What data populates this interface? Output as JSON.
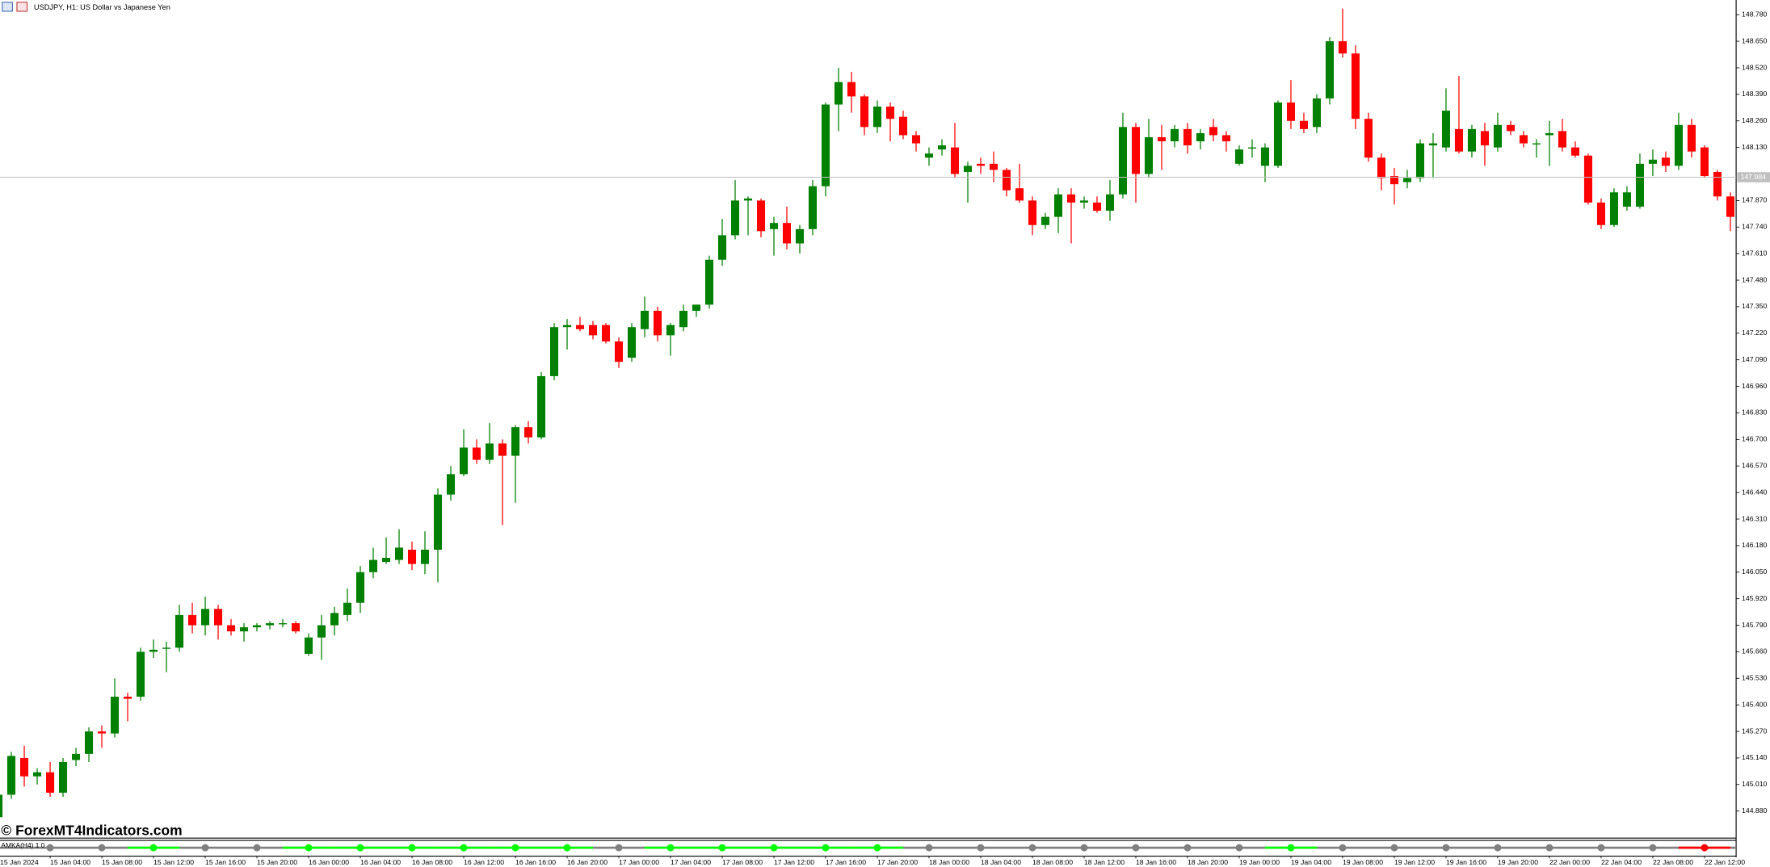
{
  "chart_data": {
    "type": "candlestick",
    "title": "USDJPY, H1:  US Dollar vs Japanese Yen",
    "watermark": "© ForexMT4Indicators.com",
    "categories": [
      "15 Jan 2024",
      null,
      null,
      null,
      "15 Jan 04:00",
      null,
      null,
      null,
      "15 Jan 08:00",
      null,
      null,
      null,
      "15 Jan 12:00",
      null,
      null,
      null,
      "15 Jan 16:00",
      null,
      null,
      null,
      "15 Jan 20:00",
      null,
      null,
      null,
      "16 Jan 00:00",
      null,
      null,
      null,
      "16 Jan 04:00",
      null,
      null,
      null,
      "16 Jan 08:00",
      null,
      null,
      null,
      "16 Jan 12:00",
      null,
      null,
      null,
      "16 Jan 16:00",
      null,
      null,
      null,
      "16 Jan 20:00",
      null,
      null,
      null,
      "17 Jan 00:00",
      null,
      null,
      null,
      "17 Jan 04:00",
      null,
      null,
      null,
      "17 Jan 08:00",
      null,
      null,
      null,
      "17 Jan 12:00",
      null,
      null,
      null,
      "17 Jan 16:00",
      null,
      null,
      null,
      "17 Jan 20:00",
      null,
      null,
      null,
      "18 Jan 00:00",
      null,
      null,
      null,
      "18 Jan 04:00",
      null,
      null,
      null,
      "18 Jan 08:00",
      null,
      null,
      null,
      "18 Jan 12:00",
      null,
      null,
      null,
      "18 Jan 16:00",
      null,
      null,
      null,
      "18 Jan 20:00",
      null,
      null,
      null,
      "19 Jan 00:00",
      null,
      null,
      null,
      "19 Jan 04:00",
      null,
      null,
      null,
      "19 Jan 08:00",
      null,
      null,
      null,
      "19 Jan 12:00",
      null,
      null,
      null,
      "19 Jan 16:00",
      null,
      null,
      null,
      "19 Jan 20:00",
      null,
      null,
      null,
      "22 Jan 00:00",
      null,
      null,
      null,
      "22 Jan 04:00",
      null,
      null,
      null,
      "22 Jan 08:00",
      null,
      null,
      null,
      "22 Jan 12:00",
      null,
      null
    ],
    "open": [
      144.85,
      144.96,
      145.14,
      145.05,
      145.07,
      144.97,
      145.13,
      145.16,
      145.27,
      145.26,
      145.44,
      145.44,
      145.66,
      145.68,
      145.68,
      145.84,
      145.79,
      145.87,
      145.79,
      145.76,
      145.78,
      145.79,
      145.8,
      145.8,
      145.65,
      145.73,
      145.79,
      145.84,
      145.9,
      146.05,
      146.1,
      146.11,
      146.16,
      146.09,
      146.16,
      146.43,
      146.53,
      146.66,
      146.6,
      146.68,
      146.62,
      146.76,
      146.71,
      147.01,
      147.25,
      147.26,
      147.26,
      147.26,
      147.18,
      147.1,
      147.24,
      147.33,
      147.21,
      147.25,
      147.33,
      147.36,
      147.58,
      147.7,
      147.87,
      147.87,
      147.73,
      147.76,
      147.66,
      147.73,
      147.94,
      148.34,
      148.45,
      148.38,
      148.23,
      148.33,
      148.28,
      148.19,
      148.08,
      148.12,
      148.13,
      148.01,
      148.05,
      148.05,
      148.02,
      147.93,
      147.87,
      147.75,
      147.79,
      147.9,
      147.86,
      147.86,
      147.82,
      147.9,
      148.23,
      148.0,
      148.18,
      148.16,
      148.22,
      148.16,
      148.23,
      148.19,
      148.05,
      148.13,
      148.04,
      148.04,
      148.35,
      148.26,
      148.23,
      148.37,
      148.65,
      148.59,
      148.27,
      148.08,
      147.99,
      147.96,
      147.98,
      148.14,
      148.13,
      148.22,
      148.11,
      148.21,
      148.13,
      148.24,
      148.19,
      148.15,
      148.19,
      148.21,
      148.13,
      148.09,
      147.86,
      147.75,
      147.84,
      147.84,
      148.05,
      148.08,
      148.04,
      148.24,
      148.13,
      148.01,
      147.89
    ],
    "high": [
      144.98,
      145.17,
      145.2,
      145.09,
      145.12,
      145.14,
      145.19,
      145.29,
      145.3,
      145.53,
      145.46,
      145.68,
      145.72,
      145.71,
      145.89,
      145.9,
      145.93,
      145.89,
      145.82,
      145.8,
      145.8,
      145.81,
      145.82,
      145.81,
      145.75,
      145.84,
      145.88,
      145.97,
      146.08,
      146.17,
      146.22,
      146.26,
      146.2,
      146.25,
      146.46,
      146.57,
      146.75,
      146.7,
      146.78,
      146.7,
      146.77,
      146.79,
      147.03,
      147.27,
      147.29,
      147.3,
      147.28,
      147.27,
      147.2,
      147.27,
      147.4,
      147.35,
      147.27,
      147.36,
      147.36,
      147.6,
      147.78,
      147.97,
      147.89,
      147.88,
      147.79,
      147.84,
      147.75,
      147.97,
      148.35,
      148.52,
      148.5,
      148.39,
      148.36,
      148.35,
      148.31,
      148.21,
      148.13,
      148.17,
      148.25,
      148.06,
      148.08,
      148.11,
      148.03,
      148.05,
      147.89,
      147.81,
      147.93,
      147.93,
      147.89,
      147.89,
      147.97,
      148.3,
      148.25,
      148.27,
      148.24,
      148.24,
      148.25,
      148.22,
      148.27,
      148.21,
      148.14,
      148.17,
      148.15,
      148.36,
      148.46,
      148.3,
      148.39,
      148.67,
      148.81,
      148.63,
      148.3,
      148.1,
      148.03,
      148.02,
      148.17,
      148.2,
      148.42,
      148.48,
      148.24,
      148.25,
      148.3,
      148.26,
      148.21,
      148.17,
      148.26,
      148.27,
      148.16,
      148.1,
      147.88,
      147.93,
      147.94,
      148.1,
      148.12,
      148.11,
      148.3,
      148.27,
      148.14,
      148.02,
      147.91
    ],
    "low": [
      144.82,
      144.94,
      145.0,
      145.01,
      144.95,
      144.95,
      145.1,
      145.12,
      145.19,
      145.24,
      145.32,
      145.42,
      145.63,
      145.56,
      145.66,
      145.75,
      145.74,
      145.72,
      145.74,
      145.71,
      145.76,
      145.77,
      145.78,
      145.75,
      145.64,
      145.62,
      145.74,
      145.81,
      145.85,
      146.02,
      146.09,
      146.09,
      146.06,
      146.04,
      146.0,
      146.4,
      146.52,
      146.58,
      146.58,
      146.28,
      146.39,
      146.68,
      146.7,
      146.99,
      147.14,
      147.23,
      147.19,
      147.17,
      147.05,
      147.08,
      147.2,
      147.18,
      147.11,
      147.23,
      147.3,
      147.34,
      147.55,
      147.68,
      147.7,
      147.69,
      147.6,
      147.63,
      147.61,
      147.7,
      147.89,
      148.21,
      148.3,
      148.19,
      148.2,
      148.16,
      148.17,
      148.11,
      148.04,
      148.09,
      147.98,
      147.86,
      148.0,
      147.96,
      147.89,
      147.86,
      147.7,
      147.73,
      147.71,
      147.66,
      147.83,
      147.81,
      147.77,
      147.88,
      147.86,
      147.98,
      148.02,
      148.13,
      148.1,
      148.12,
      148.16,
      148.11,
      148.04,
      148.08,
      147.96,
      148.03,
      148.22,
      148.2,
      148.2,
      148.34,
      148.57,
      148.22,
      148.06,
      147.92,
      147.85,
      147.93,
      147.96,
      147.98,
      148.11,
      148.1,
      148.08,
      148.04,
      148.11,
      148.19,
      148.13,
      148.08,
      148.04,
      148.11,
      148.08,
      147.85,
      147.73,
      147.74,
      147.82,
      147.83,
      147.99,
      148.01,
      148.02,
      148.08,
      147.98,
      147.87,
      147.72
    ],
    "close": [
      144.96,
      145.15,
      145.05,
      145.07,
      144.97,
      145.12,
      145.16,
      145.27,
      145.26,
      145.44,
      145.43,
      145.66,
      145.67,
      145.68,
      145.84,
      145.79,
      145.87,
      145.79,
      145.76,
      145.78,
      145.79,
      145.8,
      145.8,
      145.76,
      145.73,
      145.79,
      145.85,
      145.9,
      146.05,
      146.11,
      146.12,
      146.17,
      146.09,
      146.16,
      146.43,
      146.53,
      146.66,
      146.6,
      146.68,
      146.62,
      146.76,
      146.71,
      147.01,
      147.25,
      147.26,
      147.24,
      147.21,
      147.18,
      147.08,
      147.25,
      147.33,
      147.21,
      147.26,
      147.33,
      147.36,
      147.58,
      147.7,
      147.87,
      147.88,
      147.72,
      147.76,
      147.66,
      147.73,
      147.94,
      148.34,
      148.45,
      148.38,
      148.23,
      148.33,
      148.27,
      148.19,
      148.15,
      148.1,
      148.14,
      148.0,
      148.04,
      148.04,
      148.02,
      147.92,
      147.87,
      147.75,
      147.79,
      147.9,
      147.86,
      147.87,
      147.82,
      147.9,
      148.23,
      148.0,
      148.18,
      148.16,
      148.22,
      148.14,
      148.2,
      148.19,
      148.16,
      148.12,
      148.13,
      148.13,
      148.35,
      148.26,
      148.22,
      148.37,
      148.65,
      148.59,
      148.27,
      148.08,
      147.98,
      147.95,
      147.98,
      148.15,
      148.15,
      148.31,
      148.11,
      148.22,
      148.14,
      148.24,
      148.21,
      148.15,
      148.15,
      148.2,
      148.13,
      148.09,
      147.86,
      147.75,
      147.91,
      147.91,
      148.05,
      148.07,
      148.04,
      148.24,
      148.11,
      147.99,
      147.89,
      147.79
    ],
    "up_color": "#008000",
    "down_color": "#ff0000",
    "ylim": [
      144.753,
      148.852
    ],
    "yticks": [
      {
        "value": 148.78,
        "label": "148.780"
      },
      {
        "value": 148.65,
        "label": "148.650"
      },
      {
        "value": 148.52,
        "label": "148.520"
      },
      {
        "value": 148.39,
        "label": "148.390"
      },
      {
        "value": 148.26,
        "label": "148.260"
      },
      {
        "value": 148.13,
        "label": "148.130"
      },
      {
        "value": 147.87,
        "label": "147.870"
      },
      {
        "value": 147.74,
        "label": "147.740"
      },
      {
        "value": 147.61,
        "label": "147.610"
      },
      {
        "value": 147.48,
        "label": "147.480"
      },
      {
        "value": 147.35,
        "label": "147.350"
      },
      {
        "value": 147.22,
        "label": "147.220"
      },
      {
        "value": 147.09,
        "label": "147.090"
      },
      {
        "value": 146.96,
        "label": "146.960"
      },
      {
        "value": 146.83,
        "label": "146.830"
      },
      {
        "value": 146.7,
        "label": "146.700"
      },
      {
        "value": 146.57,
        "label": "146.570"
      },
      {
        "value": 146.44,
        "label": "146.440"
      },
      {
        "value": 146.31,
        "label": "146.310"
      },
      {
        "value": 146.18,
        "label": "146.180"
      },
      {
        "value": 146.05,
        "label": "146.050"
      },
      {
        "value": 145.92,
        "label": "145.920"
      },
      {
        "value": 145.79,
        "label": "145.790"
      },
      {
        "value": 145.66,
        "label": "145.660"
      },
      {
        "value": 145.53,
        "label": "145.530"
      },
      {
        "value": 145.4,
        "label": "145.400"
      },
      {
        "value": 145.27,
        "label": "145.270"
      },
      {
        "value": 145.14,
        "label": "145.140"
      },
      {
        "value": 145.01,
        "label": "145.010"
      },
      {
        "value": 144.88,
        "label": "144.880"
      }
    ],
    "current_price": 147.984,
    "indicator": {
      "label": "AMKA(H4) 1 0",
      "dot_colors": [
        "#808080",
        "#808080",
        "#00ff00",
        "#808080",
        "#808080",
        "#00ff00",
        "#00ff00",
        "#00ff00",
        "#00ff00",
        "#00ff00",
        "#00ff00",
        "#808080",
        "#00ff00",
        "#00ff00",
        "#00ff00",
        "#00ff00",
        "#00ff00",
        "#808080",
        "#808080",
        "#808080",
        "#808080",
        "#808080",
        "#808080",
        "#808080",
        "#00ff00",
        "#808080",
        "#808080",
        "#808080",
        "#808080",
        "#808080",
        "#808080",
        "#808080",
        "#ff0000"
      ]
    }
  }
}
